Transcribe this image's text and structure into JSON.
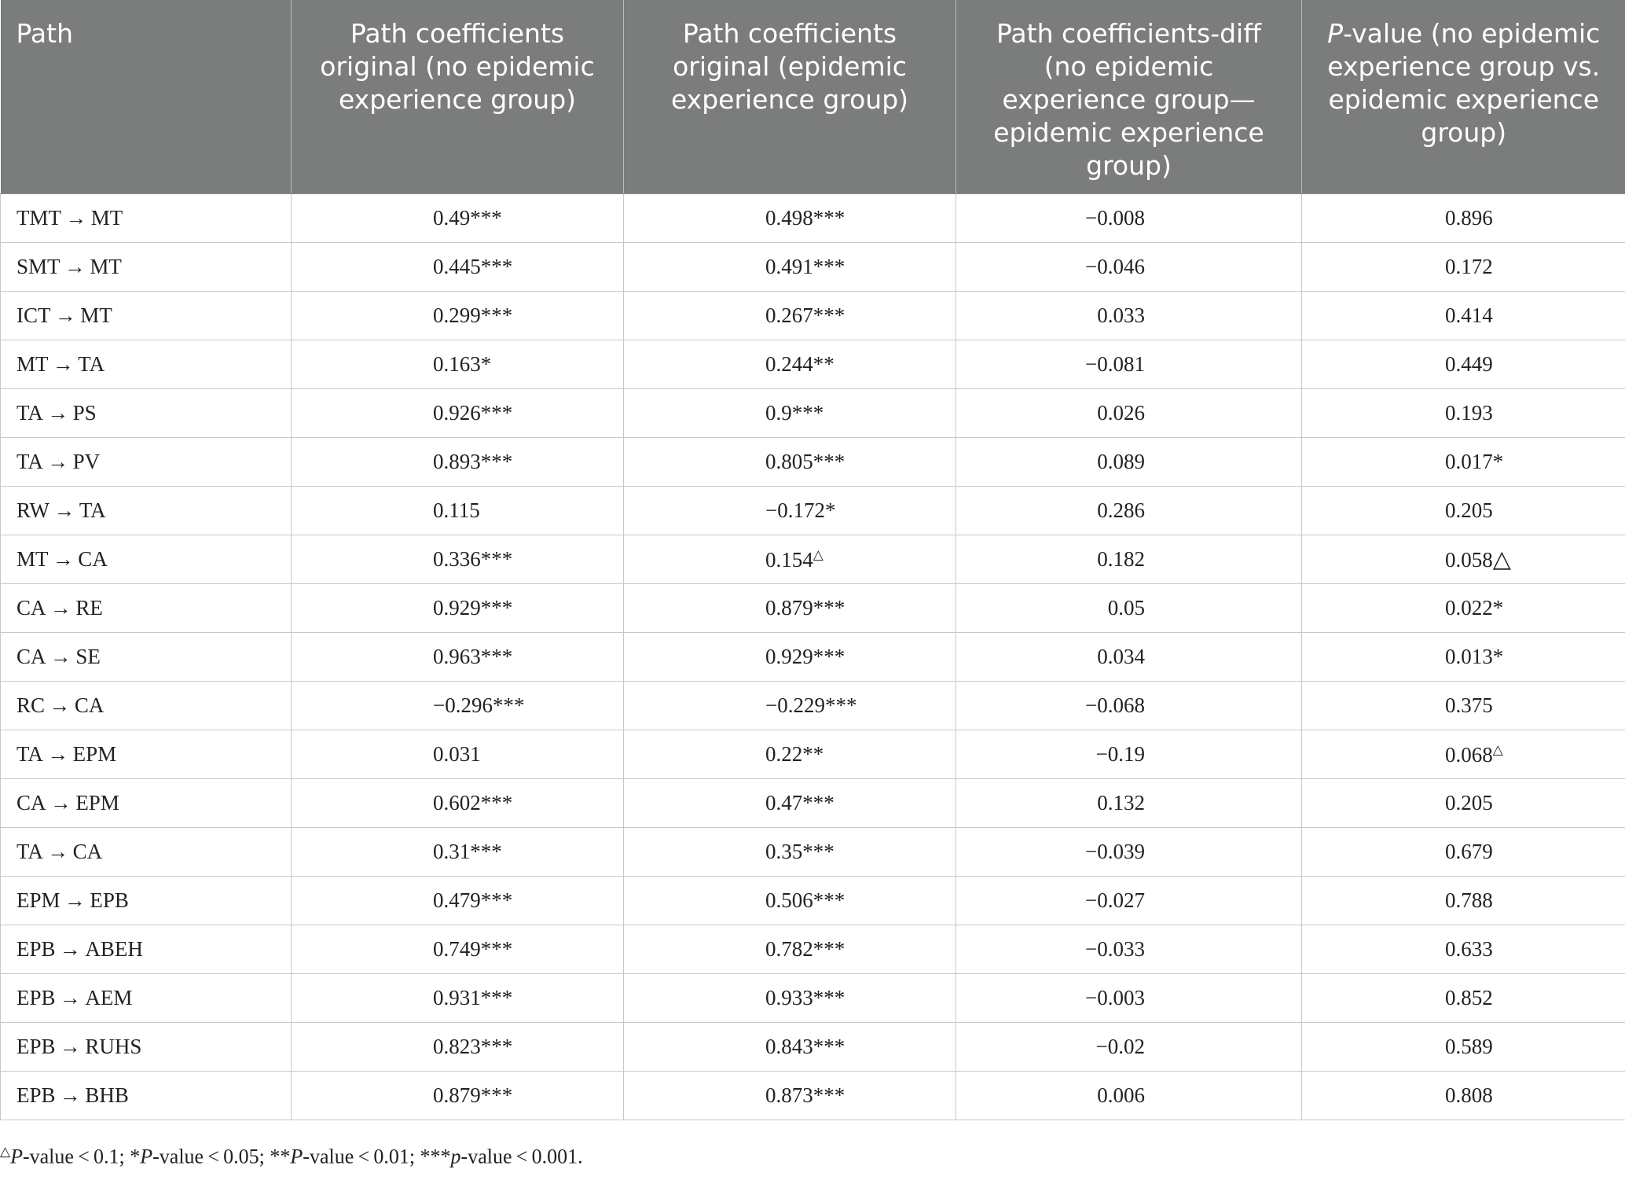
{
  "table": {
    "headers": [
      "Path",
      "Path coefficients original (no epidemic experience group)",
      "Path coefficients original (epidemic experience group)",
      "Path coefficients-diff (no epidemic experience group—epidemic experience group)",
      "P-value (no epidemic experience group vs. epidemic experience group)"
    ],
    "header_pvalue_italic": "P",
    "header_pvalue_rest": "-value (no epidemic experience group vs. epidemic experience group)",
    "rows": [
      [
        "TMT → MT",
        "0.49***",
        "0.498***",
        "−0.008",
        "0.896"
      ],
      [
        "SMT → MT",
        "0.445***",
        "0.491***",
        "−0.046",
        "0.172"
      ],
      [
        "ICT → MT",
        "0.299***",
        "0.267***",
        "0.033",
        "0.414"
      ],
      [
        "MT → TA",
        "0.163*",
        "0.244**",
        "−0.081",
        "0.449"
      ],
      [
        "TA → PS",
        "0.926***",
        "0.9***",
        "0.026",
        "0.193"
      ],
      [
        "TA → PV",
        "0.893***",
        "0.805***",
        "0.089",
        "0.017*"
      ],
      [
        "RW → TA",
        "0.115",
        "−0.172*",
        "0.286",
        "0.205"
      ],
      [
        "MT → CA",
        "0.336***",
        "0.154△",
        "0.182",
        "0.058△"
      ],
      [
        "CA → RE",
        "0.929***",
        "0.879***",
        "0.05",
        "0.022*"
      ],
      [
        "CA → SE",
        "0.963***",
        "0.929***",
        "0.034",
        "0.013*"
      ],
      [
        "RC → CA",
        "−0.296***",
        "−0.229***",
        "−0.068",
        "0.375"
      ],
      [
        "TA → EPM",
        "0.031",
        "0.22**",
        "−0.19",
        "0.068△"
      ],
      [
        "CA → EPM",
        "0.602***",
        "0.47***",
        "0.132",
        "0.205"
      ],
      [
        "TA → CA",
        "0.31***",
        "0.35***",
        "−0.039",
        "0.679"
      ],
      [
        "EPM → EPB",
        "0.479***",
        "0.506***",
        "−0.027",
        "0.788"
      ],
      [
        "EPB → ABEH",
        "0.749***",
        "0.782***",
        "−0.033",
        "0.633"
      ],
      [
        "EPB → AEM",
        "0.931***",
        "0.933***",
        "−0.003",
        "0.852"
      ],
      [
        "EPB → RUHS",
        "0.823***",
        "0.843***",
        "−0.02",
        "0.589"
      ],
      [
        "EPB → BHB",
        "0.879***",
        "0.873***",
        "0.006",
        "0.808"
      ]
    ]
  },
  "footnote": "△P-value < 0.1; *P-value < 0.05; **P-value < 0.01; ***p-value < 0.001."
}
